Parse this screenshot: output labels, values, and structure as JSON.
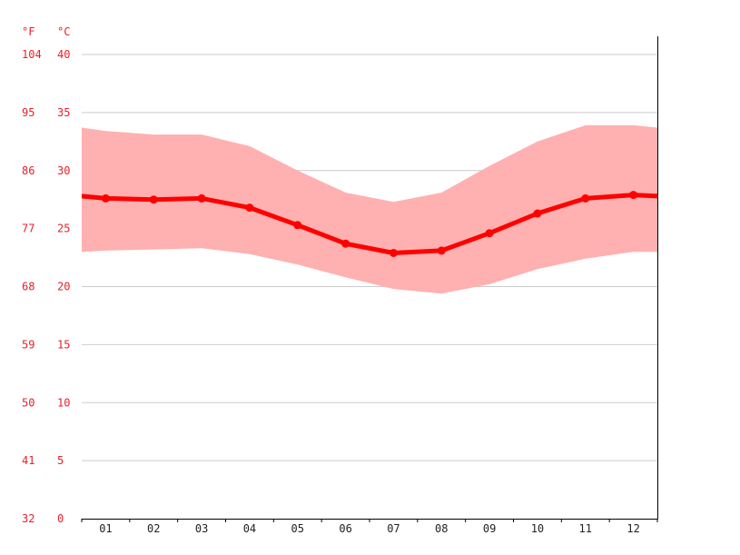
{
  "chart_data": {
    "type": "line",
    "x": [
      "01",
      "02",
      "03",
      "04",
      "05",
      "06",
      "07",
      "08",
      "09",
      "10",
      "11",
      "12"
    ],
    "y_unit_left": "°F",
    "y_unit_right": "°C",
    "ylim": [
      0,
      40
    ],
    "y_ticks_c": [
      0,
      5,
      10,
      15,
      20,
      25,
      30,
      35,
      40
    ],
    "y_ticks_f": [
      32,
      41,
      50,
      59,
      68,
      77,
      86,
      95,
      104
    ],
    "grid": true,
    "series": [
      {
        "kind": "line",
        "values": [
          27.6,
          27.5,
          27.6,
          26.8,
          25.3,
          23.7,
          22.9,
          23.1,
          24.6,
          26.3,
          27.6,
          27.9
        ],
        "edge_values": [
          27.8,
          27.8
        ],
        "color": "#ff0000"
      },
      {
        "kind": "band",
        "upper": [
          33.4,
          33.1,
          33.1,
          32.1,
          30.0,
          28.1,
          27.3,
          28.1,
          30.4,
          32.5,
          33.9,
          33.9
        ],
        "lower": [
          23.1,
          23.2,
          23.3,
          22.8,
          21.9,
          20.8,
          19.8,
          19.4,
          20.2,
          21.5,
          22.4,
          23.0
        ],
        "edge_upper": [
          33.7,
          33.7
        ],
        "edge_lower": [
          23.0,
          23.0
        ],
        "color": "#ffb0b0"
      }
    ]
  }
}
